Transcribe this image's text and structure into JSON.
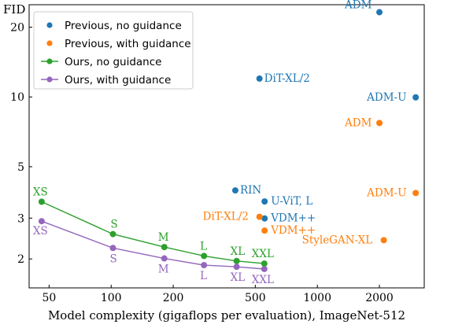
{
  "chart_data": {
    "type": "scatter",
    "ylabel": "FID",
    "xlabel": "Model complexity (gigaflops per evaluation), ImageNet-512",
    "x_scale": "log",
    "y_scale": "log",
    "xlim": [
      40,
      3300
    ],
    "ylim": [
      1.5,
      25
    ],
    "x_ticks": [
      50,
      100,
      200,
      500,
      1000,
      2000
    ],
    "x_tick_labels": [
      "50",
      "100",
      "200",
      "500",
      "1000",
      "2000"
    ],
    "y_ticks": [
      2,
      3,
      5,
      10,
      20
    ],
    "y_tick_labels": [
      "2",
      "3",
      "5",
      "10",
      "20"
    ],
    "grid": false,
    "legend_position": "top-left",
    "colors": {
      "previous_no_guidance": "#1f77b4",
      "previous_with_guidance": "#ff7f0e",
      "ours_no_guidance": "#2ca02c",
      "ours_with_guidance": "#9467bd"
    },
    "series": [
      {
        "name": "Previous, no guidance",
        "color": "#1f77b4",
        "marker": "dot",
        "connected": false,
        "points": [
          {
            "label": "ADM",
            "x": 2000,
            "y": 23.2
          },
          {
            "label": "ADM-U",
            "x": 3000,
            "y": 9.96
          },
          {
            "label": "DiT-XL/2",
            "x": 524,
            "y": 12.0
          },
          {
            "label": "RIN",
            "x": 400,
            "y": 3.95
          },
          {
            "label": "U-ViT, L",
            "x": 555,
            "y": 3.54
          },
          {
            "label": "VDM++",
            "x": 555,
            "y": 2.99
          }
        ]
      },
      {
        "name": "Previous, with guidance",
        "color": "#ff7f0e",
        "marker": "dot",
        "connected": false,
        "points": [
          {
            "label": "ADM",
            "x": 2000,
            "y": 7.72
          },
          {
            "label": "ADM-U",
            "x": 3000,
            "y": 3.85
          },
          {
            "label": "DiT-XL/2",
            "x": 524,
            "y": 3.04
          },
          {
            "label": "VDM++",
            "x": 555,
            "y": 2.65
          },
          {
            "label": "StyleGAN-XL",
            "x": 2100,
            "y": 2.41
          }
        ]
      },
      {
        "name": "Ours, no guidance",
        "color": "#2ca02c",
        "marker": "dot",
        "connected": true,
        "points": [
          {
            "label": "XS",
            "x": 46,
            "y": 3.53
          },
          {
            "label": "S",
            "x": 102,
            "y": 2.56
          },
          {
            "label": "M",
            "x": 181,
            "y": 2.25
          },
          {
            "label": "L",
            "x": 282,
            "y": 2.06
          },
          {
            "label": "XL",
            "x": 406,
            "y": 1.96
          },
          {
            "label": "XXL",
            "x": 553,
            "y": 1.91
          }
        ]
      },
      {
        "name": "Ours, with guidance",
        "color": "#9467bd",
        "marker": "dot",
        "connected": true,
        "points": [
          {
            "label": "XS",
            "x": 46,
            "y": 2.91
          },
          {
            "label": "S",
            "x": 102,
            "y": 2.23
          },
          {
            "label": "M",
            "x": 181,
            "y": 2.01
          },
          {
            "label": "L",
            "x": 282,
            "y": 1.88
          },
          {
            "label": "XL",
            "x": 406,
            "y": 1.85
          },
          {
            "label": "XXL",
            "x": 553,
            "y": 1.81
          }
        ]
      }
    ],
    "point_label_offsets": {
      "Previous, no guidance": [
        [
          -44,
          -5
        ],
        [
          -62,
          4
        ],
        [
          6,
          4
        ],
        [
          6,
          4
        ],
        [
          8,
          4
        ],
        [
          8,
          4
        ]
      ],
      "Previous, with guidance": [
        [
          -44,
          4
        ],
        [
          -62,
          4
        ],
        [
          -72,
          4
        ],
        [
          8,
          4
        ],
        [
          -104,
          4
        ]
      ],
      "Ours, no guidance": [
        [
          -11,
          -8
        ],
        [
          -3,
          -8
        ],
        [
          -8,
          -8
        ],
        [
          -5,
          -8
        ],
        [
          -8,
          -8
        ],
        [
          -16,
          -8
        ]
      ],
      "Ours, with guidance": [
        [
          -11,
          17
        ],
        [
          -4,
          18
        ],
        [
          -8,
          18
        ],
        [
          -5,
          18
        ],
        [
          -8,
          18
        ],
        [
          -16,
          18
        ]
      ]
    }
  }
}
